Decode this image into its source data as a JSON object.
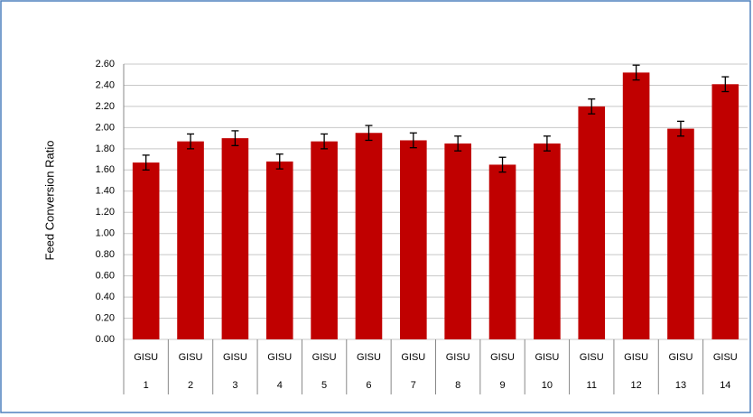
{
  "chart_data": {
    "type": "bar",
    "y_label": "Feed Conversion Ratio",
    "categories": [
      [
        "GISU",
        "1"
      ],
      [
        "GISU",
        "2"
      ],
      [
        "GISU",
        "3"
      ],
      [
        "GISU",
        "4"
      ],
      [
        "GISU",
        "5"
      ],
      [
        "GISU",
        "6"
      ],
      [
        "GISU",
        "7"
      ],
      [
        "GISU",
        "8"
      ],
      [
        "GISU",
        "9"
      ],
      [
        "GISU",
        "10"
      ],
      [
        "GISU",
        "11"
      ],
      [
        "GISU",
        "12"
      ],
      [
        "GISU",
        "13"
      ],
      [
        "GISU",
        "14"
      ]
    ],
    "values": [
      1.67,
      1.87,
      1.9,
      1.68,
      1.87,
      1.95,
      1.88,
      1.85,
      1.65,
      1.85,
      2.2,
      2.52,
      1.99,
      2.41
    ],
    "errors": [
      0.07,
      0.07,
      0.07,
      0.07,
      0.07,
      0.07,
      0.07,
      0.07,
      0.07,
      0.07,
      0.07,
      0.07,
      0.07,
      0.07
    ],
    "color": "#c00000",
    "ylim": [
      0,
      2.6
    ],
    "yticks": [
      {
        "value": 0,
        "label": "0.00"
      },
      {
        "value": 0.2,
        "label": "0.20"
      },
      {
        "value": 0.4,
        "label": "0.40"
      },
      {
        "value": 0.6,
        "label": "0.60"
      },
      {
        "value": 0.8,
        "label": "0.80"
      },
      {
        "value": 1.0,
        "label": "1.00"
      },
      {
        "value": 1.2,
        "label": "1.20"
      },
      {
        "value": 1.4,
        "label": "1.40"
      },
      {
        "value": 1.6,
        "label": "1.60"
      },
      {
        "value": 1.8,
        "label": "1.80"
      },
      {
        "value": 2.0,
        "label": "2.00"
      },
      {
        "value": 2.2,
        "label": "2.20"
      },
      {
        "value": 2.4,
        "label": "2.40"
      },
      {
        "value": 2.6,
        "label": "2.60"
      }
    ],
    "grid": true
  }
}
